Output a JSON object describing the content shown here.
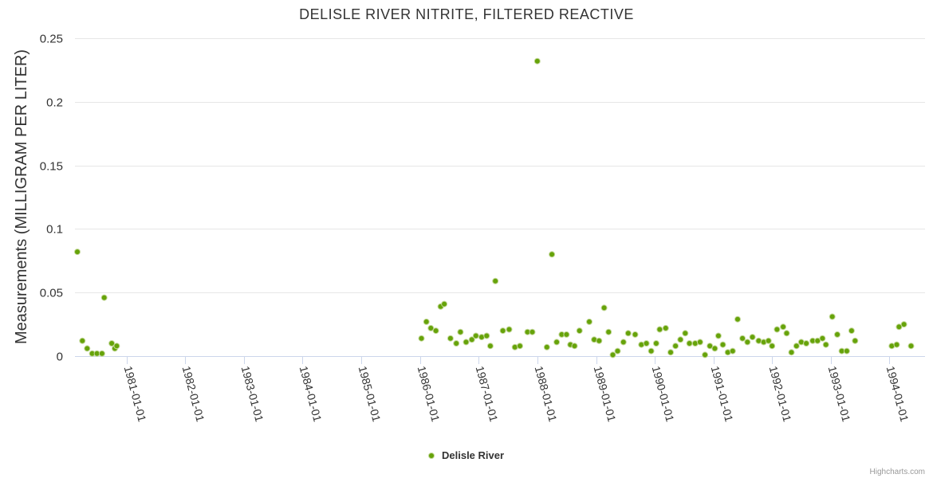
{
  "chart_data": {
    "type": "scatter",
    "title": "DELISLE RIVER NITRITE, FILTERED REACTIVE",
    "ylabel": "Measurements (MILLIGRAM PER LITER)",
    "xlabel": "",
    "ylim": [
      0,
      0.25
    ],
    "yticks": [
      {
        "value": 0,
        "label": "0"
      },
      {
        "value": 0.05,
        "label": "0.05"
      },
      {
        "value": 0.1,
        "label": "0.1"
      },
      {
        "value": 0.15,
        "label": "0.15"
      },
      {
        "value": 0.2,
        "label": "0.2"
      },
      {
        "value": 0.25,
        "label": "0.25"
      }
    ],
    "xlim": [
      "1980-02-15",
      "1994-08-10"
    ],
    "xticks": [
      "1981-01-01",
      "1982-01-01",
      "1983-01-01",
      "1984-01-01",
      "1985-01-01",
      "1986-01-01",
      "1987-01-01",
      "1988-01-01",
      "1989-01-01",
      "1990-01-01",
      "1991-01-01",
      "1992-01-01",
      "1993-01-01",
      "1994-01-01"
    ],
    "grid": true,
    "legend": "bottom-center",
    "color": "#66a30a",
    "series": [
      {
        "name": "Delisle River",
        "points": [
          [
            "1980-03-01",
            0.082
          ],
          [
            "1980-04-01",
            0.012
          ],
          [
            "1980-05-01",
            0.006
          ],
          [
            "1980-06-01",
            0.002
          ],
          [
            "1980-07-01",
            0.002
          ],
          [
            "1980-08-01",
            0.002
          ],
          [
            "1980-08-15",
            0.046
          ],
          [
            "1980-10-01",
            0.01
          ],
          [
            "1980-10-20",
            0.006
          ],
          [
            "1980-11-01",
            0.008
          ],
          [
            "1986-01-10",
            0.014
          ],
          [
            "1986-02-10",
            0.027
          ],
          [
            "1986-03-10",
            0.022
          ],
          [
            "1986-04-10",
            0.02
          ],
          [
            "1986-05-10",
            0.039
          ],
          [
            "1986-06-01",
            0.041
          ],
          [
            "1986-07-10",
            0.014
          ],
          [
            "1986-08-15",
            0.01
          ],
          [
            "1986-09-10",
            0.019
          ],
          [
            "1986-10-15",
            0.011
          ],
          [
            "1986-11-20",
            0.013
          ],
          [
            "1986-12-15",
            0.016
          ],
          [
            "1987-01-20",
            0.015
          ],
          [
            "1987-02-20",
            0.016
          ],
          [
            "1987-03-15",
            0.008
          ],
          [
            "1987-04-15",
            0.059
          ],
          [
            "1987-06-01",
            0.02
          ],
          [
            "1987-07-10",
            0.021
          ],
          [
            "1987-08-15",
            0.007
          ],
          [
            "1987-09-15",
            0.008
          ],
          [
            "1987-11-01",
            0.019
          ],
          [
            "1987-12-01",
            0.019
          ],
          [
            "1988-01-01",
            0.232
          ],
          [
            "1988-03-01",
            0.007
          ],
          [
            "1988-04-01",
            0.08
          ],
          [
            "1988-05-01",
            0.011
          ],
          [
            "1988-06-01",
            0.017
          ],
          [
            "1988-07-01",
            0.017
          ],
          [
            "1988-07-25",
            0.009
          ],
          [
            "1988-08-20",
            0.008
          ],
          [
            "1988-09-20",
            0.02
          ],
          [
            "1988-11-20",
            0.027
          ],
          [
            "1988-12-20",
            0.013
          ],
          [
            "1989-01-20",
            0.012
          ],
          [
            "1989-02-20",
            0.038
          ],
          [
            "1989-03-20",
            0.019
          ],
          [
            "1989-04-15",
            0.001
          ],
          [
            "1989-05-15",
            0.004
          ],
          [
            "1989-06-20",
            0.011
          ],
          [
            "1989-07-20",
            0.018
          ],
          [
            "1989-09-01",
            0.017
          ],
          [
            "1989-10-10",
            0.009
          ],
          [
            "1989-11-10",
            0.01
          ],
          [
            "1989-12-10",
            0.004
          ],
          [
            "1990-01-10",
            0.01
          ],
          [
            "1990-02-01",
            0.021
          ],
          [
            "1990-03-10",
            0.022
          ],
          [
            "1990-04-10",
            0.003
          ],
          [
            "1990-05-10",
            0.008
          ],
          [
            "1990-06-10",
            0.013
          ],
          [
            "1990-07-10",
            0.018
          ],
          [
            "1990-08-05",
            0.01
          ],
          [
            "1990-09-10",
            0.01
          ],
          [
            "1990-10-10",
            0.011
          ],
          [
            "1990-11-10",
            0.001
          ],
          [
            "1990-12-10",
            0.008
          ],
          [
            "1991-01-10",
            0.006
          ],
          [
            "1991-02-01",
            0.016
          ],
          [
            "1991-03-01",
            0.009
          ],
          [
            "1991-04-01",
            0.003
          ],
          [
            "1991-05-01",
            0.004
          ],
          [
            "1991-06-01",
            0.029
          ],
          [
            "1991-07-01",
            0.014
          ],
          [
            "1991-08-01",
            0.011
          ],
          [
            "1991-09-01",
            0.015
          ],
          [
            "1991-10-10",
            0.012
          ],
          [
            "1991-11-10",
            0.011
          ],
          [
            "1991-12-10",
            0.012
          ],
          [
            "1992-01-01",
            0.008
          ],
          [
            "1992-02-01",
            0.021
          ],
          [
            "1992-03-10",
            0.023
          ],
          [
            "1992-04-01",
            0.018
          ],
          [
            "1992-05-01",
            0.003
          ],
          [
            "1992-06-01",
            0.008
          ],
          [
            "1992-07-01",
            0.011
          ],
          [
            "1992-08-01",
            0.01
          ],
          [
            "1992-09-10",
            0.012
          ],
          [
            "1992-10-10",
            0.012
          ],
          [
            "1992-11-10",
            0.014
          ],
          [
            "1992-12-01",
            0.009
          ],
          [
            "1993-01-10",
            0.031
          ],
          [
            "1993-02-10",
            0.017
          ],
          [
            "1993-03-10",
            0.004
          ],
          [
            "1993-04-10",
            0.004
          ],
          [
            "1993-05-10",
            0.02
          ],
          [
            "1993-06-01",
            0.012
          ],
          [
            "1994-01-15",
            0.008
          ],
          [
            "1994-02-15",
            0.009
          ],
          [
            "1994-03-01",
            0.023
          ],
          [
            "1994-04-01",
            0.025
          ],
          [
            "1994-05-15",
            0.008
          ]
        ]
      }
    ]
  },
  "credits": "Highcharts.com"
}
